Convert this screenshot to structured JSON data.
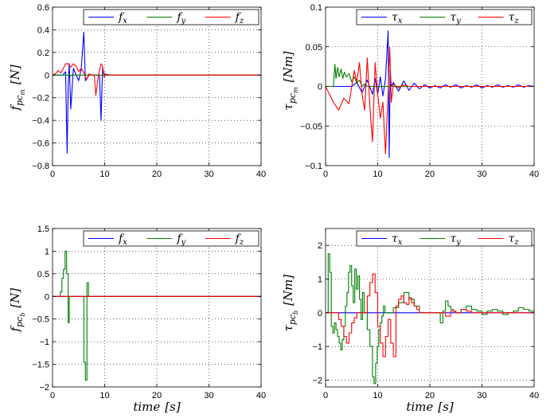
{
  "chart_data": [
    {
      "id": "fm",
      "type": "line",
      "ylabel": {
        "main": "f",
        "sub": "pc",
        "subsub": "m",
        "unit": "[N]"
      },
      "xlabel": {
        "main": "",
        "unit": ""
      },
      "xlim": [
        0,
        40
      ],
      "ylim": [
        -0.8,
        0.6
      ],
      "yticks": [
        -0.8,
        -0.6,
        -0.4,
        -0.2,
        0,
        0.2,
        0.4,
        0.6
      ],
      "yticklabels": [
        "−0.8",
        "−0.6",
        "−0.4",
        "−0.2",
        "0",
        "0.2",
        "0.4",
        "0.6"
      ],
      "xticks": [
        0,
        10,
        20,
        30,
        40
      ],
      "xticklabels": [
        "0",
        "10",
        "20",
        "30",
        "40"
      ],
      "grid": true,
      "legend_position": "top",
      "series": [
        {
          "name": "f",
          "sub": "x",
          "color": "#0000ff",
          "style": "line",
          "x": [
            0,
            2.0,
            2.5,
            2.8,
            3.0,
            3.2,
            3.5,
            4.0,
            5.0,
            5.5,
            6.0,
            6.3,
            7.0,
            8.0,
            9.0,
            9.3,
            9.6,
            10.0,
            40
          ],
          "y": [
            0,
            0,
            0.03,
            -0.69,
            -0.1,
            0.1,
            -0.3,
            0.06,
            -0.05,
            0.05,
            0.38,
            -0.05,
            0,
            0,
            0,
            -0.4,
            0.06,
            0,
            0
          ]
        },
        {
          "name": "f",
          "sub": "y",
          "color": "#008000",
          "style": "line",
          "x": [
            0,
            3.0,
            3.2,
            3.5,
            3.8,
            4.2,
            40
          ],
          "y": [
            0,
            0,
            0.01,
            -0.01,
            0.005,
            0,
            0
          ]
        },
        {
          "name": "f",
          "sub": "z",
          "color": "#ff0000",
          "style": "line",
          "x": [
            0,
            0.8,
            1.0,
            1.3,
            1.6,
            2.0,
            2.5,
            3.0,
            3.5,
            4.0,
            4.5,
            5.0,
            5.5,
            6.0,
            6.5,
            7.0,
            7.5,
            8.0,
            8.3,
            8.8,
            9.0,
            9.3,
            9.6,
            9.9,
            10.2,
            11,
            40
          ],
          "y": [
            0,
            0.02,
            0.04,
            0.03,
            0.02,
            0.05,
            0.1,
            0.1,
            0.07,
            0.1,
            0.08,
            0.03,
            0.06,
            0.02,
            -0.04,
            0.01,
            0,
            0,
            -0.18,
            0,
            0.04,
            0.1,
            0.08,
            -0.02,
            0.01,
            0,
            0
          ]
        }
      ]
    },
    {
      "id": "taum",
      "type": "line",
      "ylabel": {
        "main": "τ",
        "sub": "pc",
        "subsub": "m",
        "unit": "[Nm]"
      },
      "xlabel": {
        "main": "",
        "unit": ""
      },
      "xlim": [
        0,
        40
      ],
      "ylim": [
        -0.1,
        0.1
      ],
      "yticks": [
        -0.1,
        -0.05,
        0,
        0.05,
        0.1
      ],
      "yticklabels": [
        "−0.1",
        "−0.05",
        "0",
        "0.05",
        "0.1"
      ],
      "xticks": [
        0,
        10,
        20,
        30,
        40
      ],
      "xticklabels": [
        "0",
        "10",
        "20",
        "30",
        "40"
      ],
      "grid": true,
      "legend_position": "top",
      "series": [
        {
          "name": "τ",
          "sub": "x",
          "color": "#0000ff",
          "style": "line",
          "x": [
            0,
            5,
            6,
            7,
            8,
            9,
            9.5,
            10,
            10.5,
            11,
            11.5,
            12.0,
            12.2,
            12.4,
            12.6,
            13,
            14,
            15,
            16,
            17,
            18,
            19,
            20,
            21,
            22,
            23,
            24,
            25,
            26,
            27,
            28,
            29,
            30,
            31,
            32,
            33,
            34,
            35,
            36,
            37,
            38,
            39,
            40
          ],
          "y": [
            0,
            0,
            0.005,
            -0.008,
            0.008,
            -0.01,
            0.01,
            -0.01,
            0.012,
            -0.012,
            0.01,
            0.07,
            -0.09,
            0.02,
            0,
            0.005,
            -0.006,
            0.007,
            -0.005,
            0.004,
            -0.003,
            0.002,
            -0.002,
            0.001,
            -0.002,
            0.002,
            -0.001,
            0.002,
            -0.002,
            0.001,
            -0.001,
            0.002,
            -0.002,
            0.001,
            -0.001,
            0.002,
            -0.001,
            0.001,
            -0.001,
            0.002,
            -0.001,
            0.001,
            0
          ]
        },
        {
          "name": "τ",
          "sub": "y",
          "color": "#008000",
          "style": "line",
          "x": [
            0,
            1.5,
            1.8,
            2.0,
            2.3,
            2.6,
            3.0,
            3.3,
            3.6,
            4.0,
            4.5,
            5.0,
            5.5,
            6.0,
            6.5,
            7.0,
            7.5,
            8.0,
            40
          ],
          "y": [
            0,
            0,
            0.028,
            0.01,
            0.024,
            0.012,
            0.022,
            0.01,
            0.018,
            0.012,
            0.016,
            0.006,
            0.012,
            0.004,
            0.008,
            0,
            0.003,
            0,
            0
          ]
        },
        {
          "name": "τ",
          "sub": "z",
          "color": "#ff0000",
          "style": "line",
          "x": [
            0,
            1.5,
            2.5,
            3.5,
            4.5,
            5.5,
            6.0,
            6.5,
            7.0,
            7.5,
            8.0,
            8.5,
            9.0,
            9.5,
            10.0,
            10.5,
            11.0,
            11.5,
            12.0,
            12.3,
            12.6,
            13,
            14,
            15,
            16,
            40
          ],
          "y": [
            0,
            -0.02,
            -0.03,
            -0.015,
            -0.022,
            0.02,
            0.005,
            0.03,
            -0.01,
            -0.03,
            0.036,
            -0.025,
            -0.07,
            0.03,
            -0.01,
            -0.04,
            -0.02,
            -0.085,
            -0.01,
            0.05,
            -0.02,
            0.003,
            -0.002,
            0.002,
            0,
            0
          ]
        }
      ]
    },
    {
      "id": "fb",
      "type": "line",
      "ylabel": {
        "main": "f",
        "sub": "pc",
        "subsub": "b",
        "unit": "[N]"
      },
      "xlabel": {
        "main": "time",
        "unit": "[s]"
      },
      "xlim": [
        0,
        40
      ],
      "ylim": [
        -2,
        1.5
      ],
      "yticks": [
        -2,
        -1.5,
        -1,
        -0.5,
        0,
        0.5,
        1,
        1.5
      ],
      "yticklabels": [
        "−2",
        "−1.5",
        "−1",
        "−0.5",
        "0",
        "0.5",
        "1",
        "1.5"
      ],
      "xticks": [
        0,
        10,
        20,
        30,
        40
      ],
      "xticklabels": [
        "0",
        "10",
        "20",
        "30",
        "40"
      ],
      "grid": true,
      "legend_position": "top",
      "series": [
        {
          "name": "f",
          "sub": "x",
          "color": "#0000ff",
          "style": "step",
          "x": [
            0,
            40
          ],
          "y": [
            0,
            0
          ]
        },
        {
          "name": "f",
          "sub": "y",
          "color": "#008000",
          "style": "step",
          "x": [
            0,
            1.5,
            1.8,
            2.1,
            2.4,
            2.7,
            3.0,
            3.2,
            6.0,
            6.3,
            6.6,
            6.9,
            40
          ],
          "y": [
            0,
            0.1,
            0.4,
            0.6,
            1.0,
            0.5,
            -0.58,
            0,
            -1.45,
            -1.85,
            0.3,
            0,
            0
          ]
        },
        {
          "name": "f",
          "sub": "z",
          "color": "#ff0000",
          "style": "step",
          "x": [
            0,
            40
          ],
          "y": [
            0,
            0
          ]
        }
      ]
    },
    {
      "id": "taub",
      "type": "line",
      "ylabel": {
        "main": "τ",
        "sub": "pc",
        "subsub": "b",
        "unit": "[Nm]"
      },
      "xlabel": {
        "main": "time",
        "unit": "[s]"
      },
      "xlim": [
        0,
        40
      ],
      "ylim": [
        -2.2,
        2.5
      ],
      "yticks": [
        -2,
        -1,
        0,
        1,
        2
      ],
      "yticklabels": [
        "−2",
        "−1",
        "0",
        "1",
        "2"
      ],
      "xticks": [
        0,
        10,
        20,
        30,
        40
      ],
      "xticklabels": [
        "0",
        "10",
        "20",
        "30",
        "40"
      ],
      "grid": true,
      "legend_position": "top",
      "series": [
        {
          "name": "τ",
          "sub": "x",
          "color": "#0000ff",
          "style": "step",
          "x": [
            0,
            40
          ],
          "y": [
            0,
            0
          ]
        },
        {
          "name": "τ",
          "sub": "y",
          "color": "#008000",
          "style": "step",
          "x": [
            0,
            0.5,
            0.8,
            1.1,
            1.4,
            1.7,
            2.0,
            2.3,
            2.6,
            2.9,
            3.2,
            3.5,
            3.8,
            4.1,
            4.4,
            4.7,
            5.0,
            5.3,
            5.6,
            5.9,
            6.2,
            6.5,
            6.8,
            7.1,
            7.4,
            7.7,
            8.0,
            8.5,
            9.0,
            9.3,
            9.6,
            9.9,
            10.2,
            10.5,
            10.8,
            11.1,
            11.4,
            11.7,
            12.0,
            13,
            14,
            15,
            16,
            17,
            18,
            19,
            20,
            22,
            22.5,
            23,
            23.5,
            24,
            24.5,
            25,
            26,
            27,
            28,
            29,
            30,
            31,
            32,
            33,
            34,
            35,
            36,
            37,
            38,
            39,
            40
          ],
          "y": [
            0,
            1.75,
            1.2,
            -0.4,
            -0.6,
            -0.3,
            -0.5,
            -0.7,
            -0.9,
            -1.1,
            -0.8,
            -0.4,
            0.2,
            0.6,
            1.2,
            1.4,
            0.8,
            0.3,
            1.3,
            0.7,
            1.1,
            0.4,
            -0.2,
            0.6,
            0,
            0,
            -0.5,
            -1.0,
            -1.9,
            -2.1,
            -1.5,
            -1.0,
            -0.5,
            -0.3,
            -0.1,
            0.2,
            0,
            0,
            0,
            0.15,
            0.3,
            0.6,
            0.4,
            0.2,
            0,
            0,
            0,
            -0.3,
            0.05,
            0.35,
            0.2,
            0.1,
            0.05,
            0,
            0.1,
            0.2,
            0.1,
            0.05,
            -0.05,
            0.05,
            0.1,
            0.05,
            -0.05,
            0,
            0.05,
            0.15,
            0.1,
            0.05,
            0
          ]
        },
        {
          "name": "τ",
          "sub": "z",
          "color": "#ff0000",
          "style": "step",
          "x": [
            0,
            2.5,
            3.0,
            3.5,
            4.0,
            4.5,
            5.0,
            5.5,
            6.0,
            6.5,
            7.0,
            7.5,
            8.0,
            8.5,
            9.0,
            9.5,
            10.0,
            10.5,
            11.0,
            11.5,
            12.0,
            12.5,
            13.0,
            13.5,
            14.0,
            14.5,
            15.0,
            15.5,
            16.0,
            16.5,
            17.0,
            17.5,
            18,
            22,
            23,
            24,
            25,
            26,
            27,
            28,
            40
          ],
          "y": [
            0,
            -0.2,
            -0.4,
            -0.7,
            -0.9,
            -0.6,
            -0.3,
            -0.15,
            0,
            0,
            0,
            0,
            0.5,
            0.9,
            1.15,
            0.6,
            -0.4,
            -0.9,
            -1.3,
            -0.7,
            -0.2,
            -0.9,
            -1.3,
            0.2,
            0.4,
            0.5,
            0.3,
            0.25,
            0.45,
            0.3,
            0.2,
            0.1,
            0,
            0,
            -0.1,
            0.05,
            0,
            0.1,
            0.05,
            0,
            0
          ]
        }
      ]
    }
  ]
}
